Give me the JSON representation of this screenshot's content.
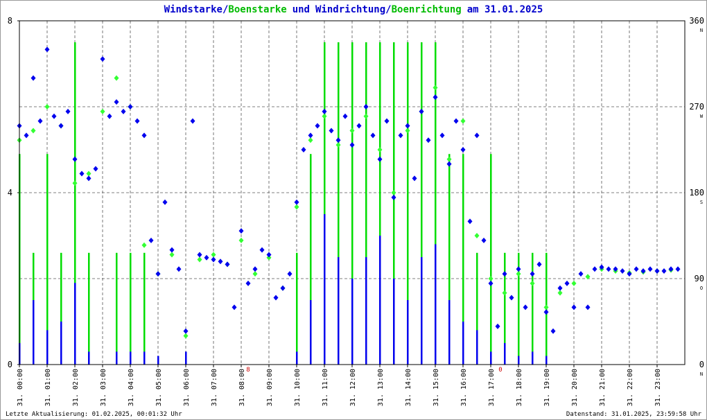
{
  "chart_data": {
    "type": "wind",
    "title_text": [
      "/",
      "und",
      "/",
      "am 31.01.2025"
    ],
    "footer_left": "Letzte Aktualisierung: 01.02.2025, 00:01:32 Uhr",
    "footer_right": "Datenstand: 31.01.2025, 23:59:58 Uhr",
    "xlim": [
      0,
      24
    ],
    "xticks": [
      {
        "value": 0,
        "label": "31. 00:00"
      },
      {
        "value": 1,
        "label": "31. 01:00"
      },
      {
        "value": 2,
        "label": "31. 02:00"
      },
      {
        "value": 3,
        "label": "31. 03:00"
      },
      {
        "value": 4,
        "label": "31. 04:00"
      },
      {
        "value": 5,
        "label": "31. 05:00"
      },
      {
        "value": 6,
        "label": "31. 06:00"
      },
      {
        "value": 7,
        "label": "31. 07:00"
      },
      {
        "value": 8,
        "label": "31. 08:00"
      },
      {
        "value": 9,
        "label": "31. 09:00"
      },
      {
        "value": 10,
        "label": "31. 10:00"
      },
      {
        "value": 11,
        "label": "31. 11:00"
      },
      {
        "value": 12,
        "label": "31. 12:00"
      },
      {
        "value": 13,
        "label": "31. 13:00"
      },
      {
        "value": 14,
        "label": "31. 14:00"
      },
      {
        "value": 15,
        "label": "31. 15:00"
      },
      {
        "value": 16,
        "label": "31. 16:00"
      },
      {
        "value": 17,
        "label": "31. 17:00"
      },
      {
        "value": 18,
        "label": "31. 18:00"
      },
      {
        "value": 19,
        "label": "31. 19:00"
      },
      {
        "value": 20,
        "label": "31. 20:00"
      },
      {
        "value": 21,
        "label": "31. 21:00"
      },
      {
        "value": 22,
        "label": "31. 22:00"
      },
      {
        "value": 23,
        "label": "31. 23:00"
      }
    ],
    "ylim": [
      0,
      8
    ],
    "yticks": [
      0,
      4,
      8
    ],
    "y2lim": [
      0,
      360
    ],
    "y2ticks": [
      0,
      90,
      180,
      270,
      360
    ],
    "y2tick_compass": [
      "N",
      "O",
      "S",
      "W",
      "N"
    ],
    "annotations": [
      {
        "x": 8.25,
        "text": "8"
      },
      {
        "x": 17.35,
        "text": "0"
      }
    ],
    "annotation_color": "#cc0000",
    "grid": true,
    "series": [
      {
        "name": "Boenstarke",
        "color": "#00dd00",
        "kind": "bar",
        "x": [
          0,
          0.5,
          1,
          1.5,
          2,
          2.5,
          3,
          3.5,
          4,
          4.5,
          5,
          5.5,
          6,
          6.5,
          7,
          7.5,
          8,
          8.5,
          9,
          9.5,
          10,
          10.5,
          11,
          11.5,
          12,
          12.5,
          13,
          13.5,
          14,
          14.5,
          15,
          15.5,
          16,
          16.5,
          17,
          17.5,
          18,
          18.5,
          19,
          19.5,
          20,
          20.5,
          21,
          21.5,
          22,
          22.5,
          23,
          23.5
        ],
        "values": [
          4.9,
          2.6,
          4.9,
          2.6,
          7.5,
          2.6,
          0,
          2.6,
          2.6,
          2.6,
          0,
          0,
          0,
          0,
          0,
          0,
          0,
          0,
          0,
          0,
          2.6,
          4.9,
          7.5,
          7.5,
          7.5,
          7.5,
          7.5,
          7.5,
          7.5,
          7.5,
          7.5,
          4.9,
          4.9,
          2.6,
          4.9,
          2.6,
          2.6,
          2.6,
          2.6,
          0,
          0,
          0,
          0,
          0,
          0,
          0,
          0,
          0
        ]
      },
      {
        "name": "Windstarke",
        "color": "#0000ee",
        "kind": "bar",
        "x": [
          0,
          0.5,
          1,
          1.5,
          2,
          2.5,
          3,
          3.5,
          4,
          4.5,
          5,
          5.5,
          6,
          6.5,
          7,
          7.5,
          8,
          8.5,
          9,
          9.5,
          10,
          10.5,
          11,
          11.5,
          12,
          12.5,
          13,
          13.5,
          14,
          14.5,
          15,
          15.5,
          16,
          16.5,
          17,
          17.5,
          18,
          18.5,
          19,
          19.5,
          20,
          20.5,
          21,
          21.5,
          22,
          22.5,
          23,
          23.5
        ],
        "values": [
          0.5,
          1.5,
          0.8,
          1.0,
          1.9,
          0.3,
          0,
          0.3,
          0.3,
          0.3,
          0.2,
          0,
          0.3,
          0,
          0,
          0,
          0,
          0,
          0,
          0,
          0.3,
          1.5,
          3.5,
          2.5,
          2.0,
          2.5,
          3.0,
          2.0,
          1.5,
          2.5,
          2.8,
          1.5,
          1.0,
          0.8,
          0.3,
          0.5,
          0.2,
          0.3,
          0.2,
          0,
          0,
          0,
          0,
          0,
          0,
          0,
          0,
          0
        ]
      },
      {
        "name": "Boenrichtung",
        "color": "#33ff33",
        "kind": "dot",
        "axis": "y2",
        "x": [
          0,
          0.5,
          1,
          1.5,
          2,
          2.5,
          3,
          3.5,
          4,
          4.5,
          5,
          5.5,
          6,
          6.5,
          7,
          7.5,
          8,
          8.5,
          9,
          9.5,
          10,
          10.5,
          11,
          11.5,
          12,
          12.5,
          13,
          13.5,
          14,
          14.5,
          15,
          15.5,
          16,
          16.5,
          17,
          17.5,
          18,
          18.5,
          19,
          19.5,
          20,
          20.5,
          21,
          21.5,
          22,
          22.5,
          23,
          23.5
        ],
        "values": [
          235,
          245,
          270,
          250,
          190,
          200,
          265,
          300,
          270,
          125,
          95,
          115,
          30,
          110,
          115,
          105,
          130,
          95,
          112,
          80,
          165,
          235,
          260,
          230,
          245,
          260,
          225,
          180,
          245,
          265,
          290,
          215,
          255,
          135,
          90,
          75,
          95,
          85,
          60,
          75,
          85,
          92,
          100,
          98,
          96,
          97,
          98,
          99
        ]
      },
      {
        "name": "Windrichtung",
        "color": "#0000ee",
        "kind": "dot",
        "axis": "y2",
        "x": [
          0,
          0.25,
          0.5,
          0.75,
          1,
          1.25,
          1.5,
          1.75,
          2,
          2.25,
          2.5,
          2.75,
          3,
          3.25,
          3.5,
          3.75,
          4,
          4.25,
          4.5,
          4.75,
          5,
          5.25,
          5.5,
          5.75,
          6,
          6.25,
          6.5,
          6.75,
          7,
          7.25,
          7.5,
          7.75,
          8,
          8.25,
          8.5,
          8.75,
          9,
          9.25,
          9.5,
          9.75,
          10,
          10.25,
          10.5,
          10.75,
          11,
          11.25,
          11.5,
          11.75,
          12,
          12.25,
          12.5,
          12.75,
          13,
          13.25,
          13.5,
          13.75,
          14,
          14.25,
          14.5,
          14.75,
          15,
          15.25,
          15.5,
          15.75,
          16,
          16.25,
          16.5,
          16.75,
          17,
          17.25,
          17.5,
          17.75,
          18,
          18.25,
          18.5,
          18.75,
          19,
          19.25,
          19.5,
          19.75,
          20,
          20.25,
          20.5,
          20.75,
          21,
          21.25,
          21.5,
          21.75,
          22,
          22.25,
          22.5,
          22.75,
          23,
          23.25,
          23.5,
          23.75
        ],
        "values": [
          250,
          240,
          300,
          255,
          330,
          260,
          250,
          265,
          215,
          200,
          195,
          205,
          320,
          260,
          275,
          265,
          270,
          255,
          240,
          130,
          95,
          170,
          120,
          100,
          35,
          255,
          115,
          112,
          110,
          108,
          105,
          60,
          140,
          85,
          100,
          120,
          115,
          70,
          80,
          95,
          170,
          225,
          240,
          250,
          265,
          245,
          235,
          260,
          230,
          250,
          270,
          240,
          215,
          255,
          175,
          240,
          250,
          195,
          265,
          235,
          280,
          240,
          210,
          255,
          225,
          150,
          240,
          130,
          85,
          40,
          95,
          70,
          100,
          60,
          95,
          105,
          55,
          35,
          80,
          85,
          60,
          95,
          60,
          100,
          102,
          100,
          100,
          98,
          95,
          100,
          98,
          100,
          98,
          98,
          100,
          100
        ]
      }
    ]
  }
}
